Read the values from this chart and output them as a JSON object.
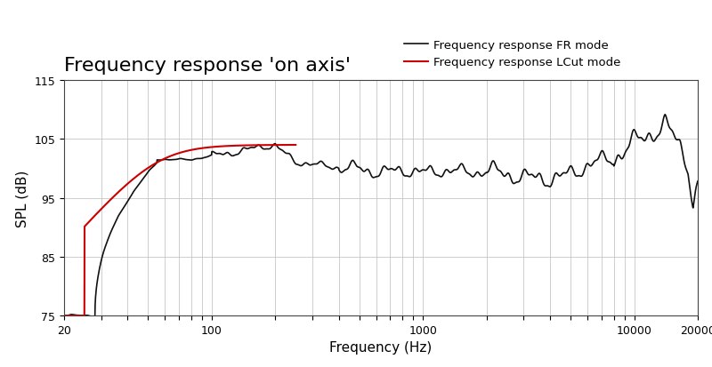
{
  "title": "Frequency response 'on axis'",
  "xlabel": "Frequency (Hz)",
  "ylabel": "SPL (dB)",
  "xlim": [
    20,
    20000
  ],
  "ylim": [
    75,
    115
  ],
  "yticks": [
    75,
    85,
    95,
    105,
    115
  ],
  "background_color": "#ffffff",
  "grid_color": "#bbbbbb",
  "fr_color": "#111111",
  "lcut_color": "#cc0000",
  "legend_fr": "Frequency response FR mode",
  "legend_lcut": "Frequency response LCut mode",
  "title_fontsize": 16,
  "label_fontsize": 11
}
